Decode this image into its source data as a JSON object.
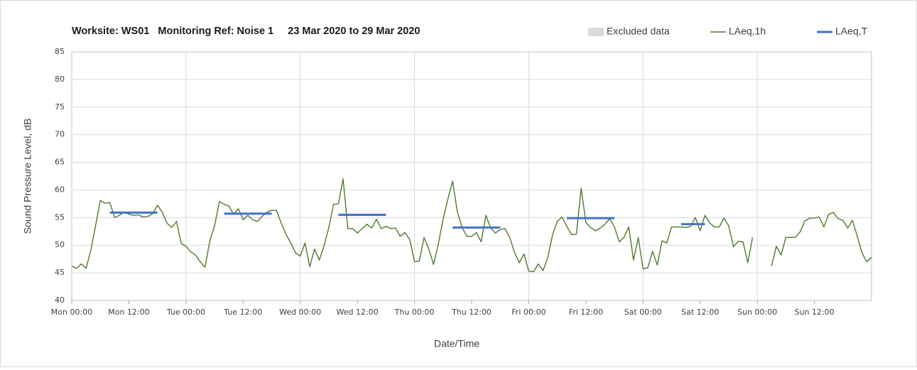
{
  "chart_data": {
    "type": "line",
    "title": "Worksite: WS01   Monitoring Ref: Noise 1     23 Mar 2020 to 29 Mar 2020",
    "xlabel": "Date/Time",
    "ylabel": "Sound Pressure Level, dB",
    "xlim": [
      0,
      168
    ],
    "ylim": [
      40,
      85
    ],
    "yticks": [
      40,
      45,
      50,
      55,
      60,
      65,
      70,
      75,
      80,
      85
    ],
    "xticks": [
      {
        "value": 0,
        "label": "Mon 00:00"
      },
      {
        "value": 12,
        "label": "Mon 12:00"
      },
      {
        "value": 24,
        "label": "Tue 00:00"
      },
      {
        "value": 36,
        "label": "Tue 12:00"
      },
      {
        "value": 48,
        "label": "Wed 00:00"
      },
      {
        "value": 60,
        "label": "Wed 12:00"
      },
      {
        "value": 72,
        "label": "Thu 00:00"
      },
      {
        "value": 84,
        "label": "Thu 12:00"
      },
      {
        "value": 96,
        "label": "Fri 00:00"
      },
      {
        "value": 108,
        "label": "Fri 12:00"
      },
      {
        "value": 120,
        "label": "Sat 00:00"
      },
      {
        "value": 132,
        "label": "Sat 12:00"
      },
      {
        "value": 144,
        "label": "Sun 00:00"
      },
      {
        "value": 156,
        "label": "Sun 12:00"
      }
    ],
    "grid": true,
    "series": [
      {
        "name": "Excluded data",
        "color": "#d9d9d9",
        "values": []
      },
      {
        "name": "LAeq,1h",
        "color": "#4e7a2e",
        "x": [
          0,
          1,
          2,
          3,
          4,
          5,
          6,
          7,
          8,
          9,
          10,
          11,
          12,
          13,
          14,
          15,
          16,
          17,
          18,
          19,
          20,
          21,
          22,
          23,
          24,
          25,
          26,
          27,
          28,
          29,
          30,
          31,
          32,
          33,
          34,
          35,
          36,
          37,
          38,
          39,
          40,
          41,
          42,
          43,
          44,
          45,
          46,
          47,
          48,
          49,
          50,
          51,
          52,
          53,
          54,
          55,
          56,
          57,
          58,
          59,
          60,
          61,
          62,
          63,
          64,
          65,
          66,
          67,
          68,
          69,
          70,
          71,
          72,
          73,
          74,
          75,
          76,
          77,
          78,
          79,
          80,
          81,
          82,
          83,
          84,
          85,
          86,
          87,
          88,
          89,
          90,
          91,
          92,
          93,
          94,
          95,
          96,
          97,
          98,
          99,
          100,
          101,
          102,
          103,
          104,
          105,
          106,
          107,
          108,
          109,
          110,
          111,
          112,
          113,
          114,
          115,
          116,
          117,
          118,
          119,
          120,
          121,
          122,
          123,
          124,
          125,
          126,
          127,
          128,
          129,
          130,
          131,
          132,
          133,
          134,
          135,
          136,
          137,
          138,
          139,
          140,
          141,
          142,
          143,
          144,
          145,
          146,
          147,
          148,
          149,
          150,
          151,
          152,
          153,
          154,
          155,
          156,
          157,
          158,
          159,
          160,
          161,
          162,
          163,
          164,
          165,
          166,
          167,
          168
        ],
        "values": [
          46.2,
          45.8,
          46.6,
          45.8,
          49,
          53.5,
          58.1,
          57.6,
          57.7,
          55,
          55.4,
          56,
          55.6,
          55.4,
          55.5,
          55.1,
          55.2,
          55.7,
          57.2,
          56,
          54,
          53.2,
          54.3,
          50.3,
          49.8,
          48.8,
          48.2,
          47,
          46,
          50.8,
          53.5,
          57.9,
          57.4,
          57.1,
          55.6,
          56.6,
          54.6,
          55.4,
          54.6,
          54.3,
          55.2,
          56,
          56.3,
          56.3,
          54,
          52,
          50.4,
          48.6,
          48,
          50.4,
          46.1,
          49.3,
          47.3,
          49.9,
          53.2,
          57.4,
          57.5,
          62,
          53,
          53,
          52.2,
          53,
          53.8,
          53.1,
          54.7,
          53,
          53.4,
          53,
          53.1,
          51.6,
          52.3,
          51,
          47,
          47.1,
          51.4,
          49.3,
          46.5,
          50.2,
          54.7,
          58.3,
          61.6,
          56,
          53.2,
          51.6,
          51.6,
          52.3,
          50.6,
          55.4,
          53.1,
          52.2,
          52.8,
          53,
          51.4,
          48.7,
          46.8,
          48.4,
          45.3,
          45.2,
          46.6,
          45.4,
          47.8,
          51.9,
          54.3,
          55.1,
          53.4,
          51.9,
          52,
          60.3,
          54.1,
          53.2,
          52.6,
          53.1,
          53.8,
          54.8,
          53.3,
          50.6,
          51.4,
          53.3,
          47.3,
          51.4,
          45.7,
          45.9,
          48.9,
          46.4,
          50.8,
          50.4,
          53.3,
          53.3,
          53.3,
          53.2,
          53.4,
          55,
          52.6,
          55.4,
          54,
          53.3,
          53.3,
          54.9,
          53.5,
          49.7,
          50.7,
          50.6,
          46.8,
          51.4,
          null,
          null,
          null,
          46.2,
          49.8,
          48.2,
          51.4,
          51.4,
          51.4,
          52.4,
          54.4,
          54.9,
          54.9,
          55.1,
          53.3,
          55.6,
          55.9,
          54.8,
          54.5,
          53.1,
          54.5,
          51.6,
          48.6,
          47,
          47.8
        ]
      },
      {
        "name": "LAeq,T",
        "color": "#4472c4",
        "segments": [
          {
            "x": [
              8,
              18
            ],
            "value": 55.9
          },
          {
            "x": [
              32,
              42
            ],
            "value": 55.7
          },
          {
            "x": [
              56,
              66
            ],
            "value": 55.5
          },
          {
            "x": [
              80,
              90
            ],
            "value": 53.2
          },
          {
            "x": [
              104,
              114
            ],
            "value": 54.9
          },
          {
            "x": [
              128,
              133
            ],
            "value": 53.8
          }
        ]
      }
    ]
  }
}
